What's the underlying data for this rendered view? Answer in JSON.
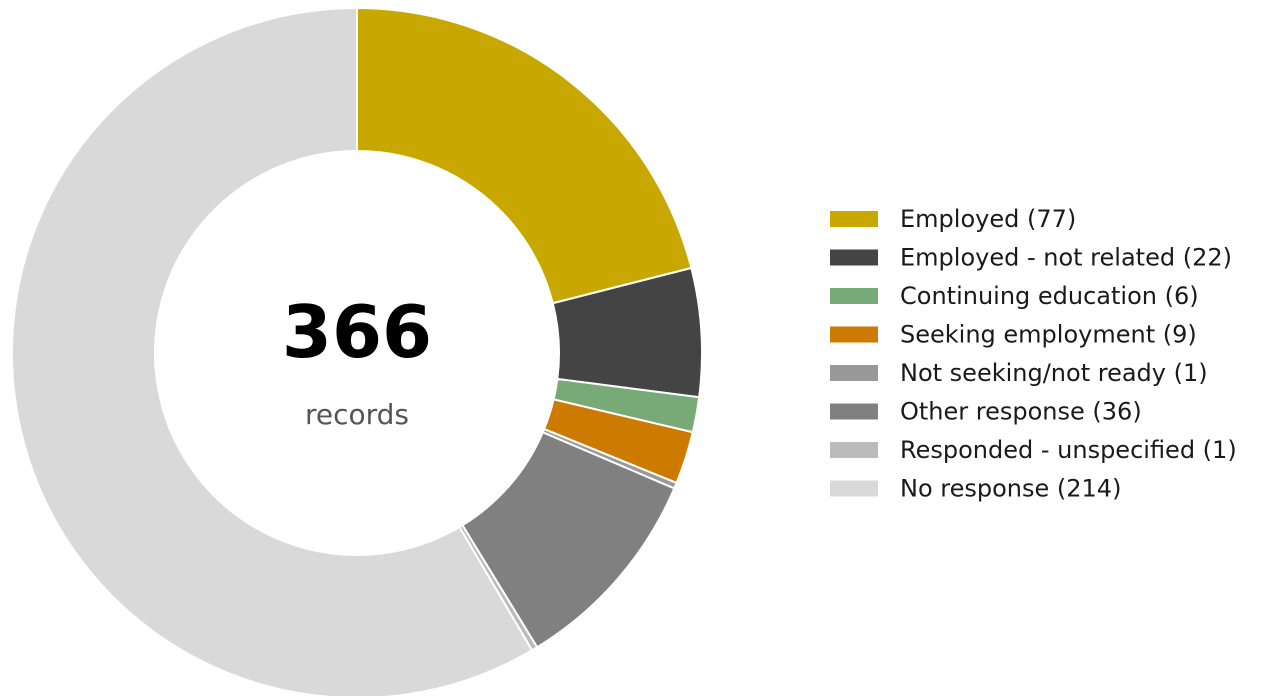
{
  "chart_data": {
    "type": "pie",
    "variant": "donut",
    "total": "366",
    "total_label": "records",
    "legend_placement": "right",
    "slices": [
      {
        "label": "Employed (77)",
        "category": "Employed",
        "value": 77,
        "color": "#c8a800"
      },
      {
        "label": "Employed - not related (22)",
        "category": "Employed - not related",
        "value": 22,
        "color": "#444444"
      },
      {
        "label": "Continuing education (6)",
        "category": "Continuing education",
        "value": 6,
        "color": "#77aa77"
      },
      {
        "label": "Seeking employment (9)",
        "category": "Seeking employment",
        "value": 9,
        "color": "#cc7a00"
      },
      {
        "label": "Not seeking/not ready (1)",
        "category": "Not seeking/not ready",
        "value": 1,
        "color": "#999999"
      },
      {
        "label": "Other response (36)",
        "category": "Other response",
        "value": 36,
        "color": "#808080"
      },
      {
        "label": "Responded - unspecified (1)",
        "category": "Responded - unspecified",
        "value": 1,
        "color": "#bbbbbb"
      },
      {
        "label": "No response (214)",
        "category": "No response",
        "value": 214,
        "color": "#d9d9d9"
      }
    ]
  }
}
